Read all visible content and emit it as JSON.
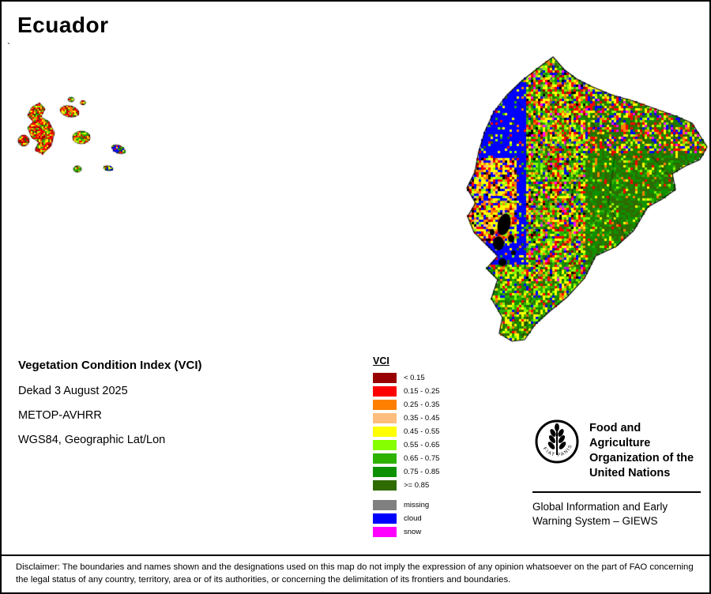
{
  "page": {
    "title": "Ecuador",
    "stray_mark": "`"
  },
  "map_info": {
    "product": "Vegetation Condition Index (VCI)",
    "dekad": "Dekad 3 August 2025",
    "sensor": "METOP-AVHRR",
    "projection": "WGS84, Geographic Lat/Lon"
  },
  "legend": {
    "title": "VCI",
    "classes": [
      {
        "label": "< 0.15",
        "color": "#990000"
      },
      {
        "label": "0.15 - 0.25",
        "color": "#FF0000"
      },
      {
        "label": "0.25 - 0.35",
        "color": "#FF8000"
      },
      {
        "label": "0.35 - 0.45",
        "color": "#FFBE7D"
      },
      {
        "label": "0.45 - 0.55",
        "color": "#FFFF00"
      },
      {
        "label": "0.55 - 0.65",
        "color": "#86FF00"
      },
      {
        "label": "0.65 - 0.75",
        "color": "#2DB200"
      },
      {
        "label": "0.75 - 0.85",
        "color": "#0E9100"
      },
      {
        "label": ">= 0.85",
        "color": "#2E6B00"
      }
    ],
    "extra_classes": [
      {
        "label": "missing",
        "color": "#808080"
      },
      {
        "label": "cloud",
        "color": "#0000FF"
      },
      {
        "label": "snow",
        "color": "#FF00FF"
      }
    ]
  },
  "footer": {
    "fao_name": "Food and Agriculture Organization of the United Nations",
    "fao_motto": "FIAT PANIS",
    "giews": "Global Information and Early Warning System – GIEWS",
    "disclaimer": "Disclaimer: The boundaries and names shown and the designations used on this map do not imply the expression of any opinion whatsoever on the part of FAO concerning the legal status of any country, territory, area or of its authorities, or concerning the delimitation of its frontiers and boundaries."
  }
}
